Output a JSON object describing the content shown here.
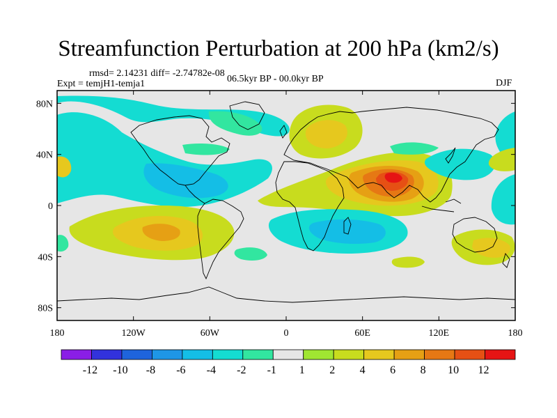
{
  "title": "Streamfunction Perturbation at 200 hPa (km2/s)",
  "stats": "rmsd= 2.14231 diff= -2.74782e-08",
  "experiment": "Expt = temjH1-temja1",
  "period": "06.5kyr BP - 00.0kyr BP",
  "season": "DJF",
  "colors": {
    "neutral": "#e6e6e6",
    "neg12": "#8a1ee6",
    "neg10": "#3232dc",
    "neg8": "#1e64dc",
    "neg6": "#1e96e6",
    "neg4": "#14bee6",
    "neg2": "#14dcd2",
    "neg1": "#32e6a0",
    "pos1": "#a0e632",
    "pos2": "#c8dc1e",
    "pos4": "#e6c81e",
    "pos6": "#e6a014",
    "pos8": "#e67814",
    "pos10": "#e65014",
    "pos12": "#e61414",
    "land": "#000000"
  },
  "chart_data": {
    "type": "heatmap",
    "projection": "cylindrical-equidistant",
    "xlim": [
      -180,
      180
    ],
    "ylim": [
      -90,
      90
    ],
    "x_ticks": [
      {
        "lon": -180,
        "label": "180"
      },
      {
        "lon": -120,
        "label": "120W"
      },
      {
        "lon": -60,
        "label": "60W"
      },
      {
        "lon": 0,
        "label": "0"
      },
      {
        "lon": 60,
        "label": "60E"
      },
      {
        "lon": 120,
        "label": "120E"
      },
      {
        "lon": 180,
        "label": "180"
      }
    ],
    "y_ticks": [
      {
        "lat": 80,
        "label": "80N"
      },
      {
        "lat": 40,
        "label": "40N"
      },
      {
        "lat": 0,
        "label": "0"
      },
      {
        "lat": -40,
        "label": "40S"
      },
      {
        "lat": -80,
        "label": "80S"
      }
    ],
    "colorbar": {
      "labels": [
        "-12",
        "-10",
        "-8",
        "-6",
        "-4",
        "-2",
        "-1",
        "1",
        "2",
        "4",
        "6",
        "8",
        "10",
        "12"
      ],
      "colors": [
        "#8a1ee6",
        "#3232dc",
        "#1e64dc",
        "#1e96e6",
        "#14bee6",
        "#14dcd2",
        "#32e6a0",
        "#e6e6e6",
        "#a0e632",
        "#c8dc1e",
        "#e6c81e",
        "#e6a014",
        "#e67814",
        "#e65014",
        "#e61414"
      ]
    },
    "features": [
      {
        "name": "South Asia maximum",
        "lon": 85,
        "lat": 25,
        "value": 10
      },
      {
        "name": "Europe anticyclone",
        "lon": 30,
        "lat": 50,
        "value": 4
      },
      {
        "name": "South Pacific maximum",
        "lon": -100,
        "lat": -22,
        "value": 6
      },
      {
        "name": "Indian Ocean minimum",
        "lon": 55,
        "lat": -22,
        "value": -4
      },
      {
        "name": "North Atlantic minimum",
        "lon": -60,
        "lat": 20,
        "value": -4
      },
      {
        "name": "Australia maximum",
        "lon": 140,
        "lat": -35,
        "value": 4
      },
      {
        "name": "North Pacific minimum",
        "lon": -130,
        "lat": 45,
        "value": -2
      }
    ]
  }
}
